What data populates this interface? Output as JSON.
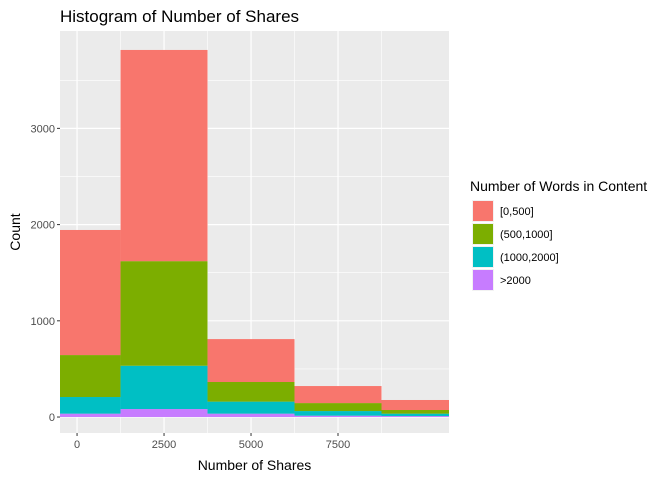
{
  "chart_data": {
    "type": "bar",
    "stacked": true,
    "title": "Histogram of Number of Shares",
    "xlabel": "Number of Shares",
    "ylabel": "Count",
    "x": [
      0,
      2500,
      5000,
      7500,
      10000
    ],
    "binwidth": 2500,
    "xlim": [
      -490,
      10690
    ],
    "ylim": [
      -166,
      4012
    ],
    "xticks": [
      0,
      2500,
      5000,
      7500
    ],
    "xtick_labels": [
      "0",
      "2500",
      "5000",
      "7500"
    ],
    "yticks": [
      0,
      1000,
      2000,
      3000
    ],
    "ytick_labels": [
      "0",
      "1000",
      "2000",
      "3000"
    ],
    "legend": {
      "title": "Number of Words in Content",
      "position": "right"
    },
    "series": [
      {
        "name": ">2000",
        "color": "#C77CFF",
        "values": [
          35,
          83,
          35,
          14,
          10
        ]
      },
      {
        "name": "(1000,2000]",
        "color": "#00BFC4",
        "values": [
          173,
          450,
          125,
          48,
          25
        ]
      },
      {
        "name": "(500,1000]",
        "color": "#7CAE00",
        "values": [
          436,
          1087,
          204,
          83,
          38
        ]
      },
      {
        "name": "[0,500]",
        "color": "#F8766D",
        "values": [
          1300,
          2195,
          446,
          177,
          104
        ]
      }
    ],
    "legend_order": [
      "[0,500]",
      "(500,1000]",
      "(1000,2000]",
      ">2000"
    ]
  }
}
